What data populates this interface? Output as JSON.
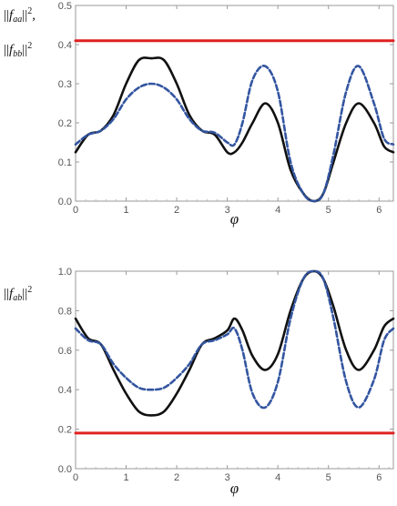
{
  "chart_data": [
    {
      "type": "line",
      "id": "top",
      "ylabel_lines": [
        "||f_aa||^2,",
        "||f_bb||^2"
      ],
      "xlabel": "φ",
      "xlim": [
        0,
        6.2832
      ],
      "ylim": [
        0,
        0.5
      ],
      "xticks": [
        "0",
        "1",
        "2",
        "3",
        "4",
        "5",
        "6"
      ],
      "yticks": [
        "0.0",
        "0.1",
        "0.2",
        "0.3",
        "0.4",
        "0.5"
      ],
      "series": [
        {
          "style": "solid",
          "color": "#111111",
          "x": [
            0,
            0.25,
            0.5,
            0.75,
            1.0,
            1.25,
            1.5,
            1.75,
            2.0,
            2.25,
            2.5,
            2.75,
            3.0,
            3.1416,
            3.3,
            3.5,
            3.75,
            4.0,
            4.25,
            4.5,
            4.7124,
            4.9,
            5.1,
            5.35,
            5.6,
            5.9,
            6.1,
            6.2832
          ],
          "y": [
            0.125,
            0.17,
            0.18,
            0.22,
            0.3,
            0.36,
            0.365,
            0.36,
            0.3,
            0.22,
            0.18,
            0.17,
            0.125,
            0.125,
            0.15,
            0.2,
            0.25,
            0.2,
            0.08,
            0.02,
            0.0,
            0.02,
            0.1,
            0.2,
            0.25,
            0.2,
            0.14,
            0.125
          ]
        },
        {
          "style": "dashed",
          "color": "#3355a0",
          "x": [
            0,
            0.25,
            0.5,
            0.75,
            1.0,
            1.25,
            1.5,
            1.75,
            2.0,
            2.25,
            2.5,
            2.75,
            3.0,
            3.1416,
            3.3,
            3.5,
            3.75,
            4.0,
            4.25,
            4.5,
            4.7124,
            4.9,
            5.1,
            5.35,
            5.6,
            5.9,
            6.1,
            6.2832
          ],
          "y": [
            0.145,
            0.17,
            0.18,
            0.21,
            0.26,
            0.29,
            0.3,
            0.29,
            0.26,
            0.21,
            0.18,
            0.175,
            0.15,
            0.145,
            0.2,
            0.31,
            0.345,
            0.28,
            0.1,
            0.02,
            0.0,
            0.02,
            0.12,
            0.28,
            0.345,
            0.25,
            0.16,
            0.145
          ]
        },
        {
          "style": "solid-thick",
          "color": "#e02020",
          "x": [
            0,
            6.2832
          ],
          "y": [
            0.41,
            0.41
          ]
        }
      ]
    },
    {
      "type": "line",
      "id": "bottom",
      "ylabel_lines": [
        "||f_ab||^2"
      ],
      "xlabel": "φ",
      "xlim": [
        0,
        6.2832
      ],
      "ylim": [
        0,
        1.0
      ],
      "xticks": [
        "0",
        "1",
        "2",
        "3",
        "4",
        "5",
        "6"
      ],
      "yticks": [
        "0.0",
        "0.2",
        "0.4",
        "0.6",
        "0.8",
        "1.0"
      ],
      "series": [
        {
          "style": "solid",
          "color": "#111111",
          "x": [
            0,
            0.25,
            0.5,
            0.75,
            1.0,
            1.25,
            1.5,
            1.75,
            2.0,
            2.25,
            2.5,
            2.75,
            3.0,
            3.1416,
            3.3,
            3.5,
            3.75,
            4.0,
            4.25,
            4.5,
            4.7124,
            4.9,
            5.1,
            5.35,
            5.6,
            5.9,
            6.1,
            6.2832
          ],
          "y": [
            0.76,
            0.66,
            0.63,
            0.5,
            0.38,
            0.29,
            0.27,
            0.29,
            0.38,
            0.5,
            0.63,
            0.66,
            0.7,
            0.76,
            0.7,
            0.57,
            0.5,
            0.58,
            0.8,
            0.96,
            1.0,
            0.96,
            0.82,
            0.6,
            0.5,
            0.6,
            0.72,
            0.76
          ]
        },
        {
          "style": "dashed",
          "color": "#3355a0",
          "x": [
            0,
            0.25,
            0.5,
            0.75,
            1.0,
            1.25,
            1.5,
            1.75,
            2.0,
            2.25,
            2.5,
            2.75,
            3.0,
            3.1416,
            3.3,
            3.5,
            3.75,
            4.0,
            4.25,
            4.5,
            4.7124,
            4.9,
            5.1,
            5.35,
            5.6,
            5.9,
            6.1,
            6.2832
          ],
          "y": [
            0.71,
            0.65,
            0.63,
            0.53,
            0.46,
            0.41,
            0.4,
            0.41,
            0.46,
            0.53,
            0.63,
            0.65,
            0.68,
            0.71,
            0.6,
            0.38,
            0.31,
            0.44,
            0.76,
            0.96,
            1.0,
            0.96,
            0.76,
            0.44,
            0.31,
            0.45,
            0.65,
            0.71
          ]
        },
        {
          "style": "solid-thick",
          "color": "#e02020",
          "x": [
            0,
            6.2832
          ],
          "y": [
            0.18,
            0.18
          ]
        }
      ]
    }
  ]
}
